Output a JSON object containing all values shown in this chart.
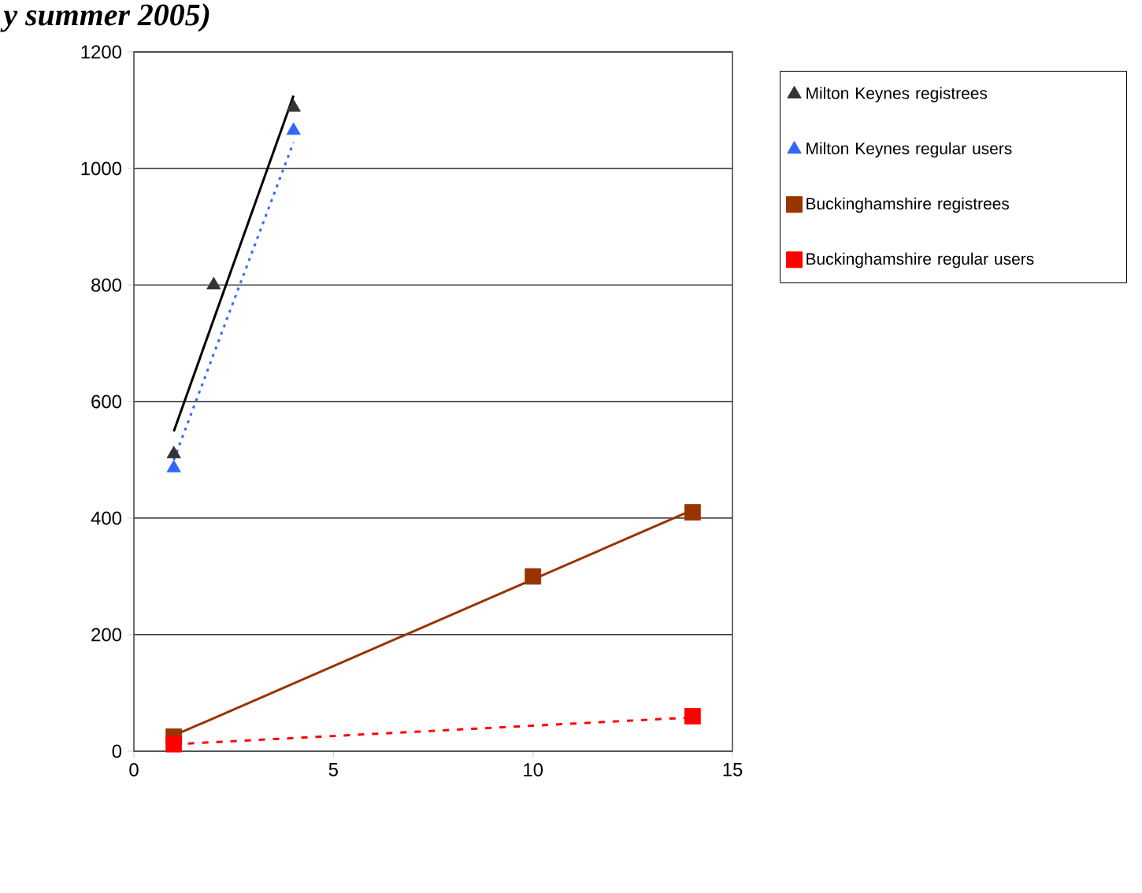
{
  "chart_data": {
    "type": "scatter",
    "title": "y summer 2005)",
    "xlim": [
      0,
      15
    ],
    "xticks": [
      0,
      5,
      10,
      15
    ],
    "ylim": [
      0,
      1200
    ],
    "yticks": [
      0,
      200,
      400,
      600,
      800,
      1000,
      1200
    ],
    "grid": "y",
    "legend": "right",
    "series": [
      {
        "name": "Milton Keynes registrees",
        "color": "#333333",
        "marker": "triangle",
        "x": [
          1,
          2,
          4
        ],
        "values": [
          510,
          800,
          1105
        ]
      },
      {
        "name": "Milton Keynes regular users",
        "color": "#3366ff",
        "marker": "triangle",
        "x": [
          1,
          4
        ],
        "values": [
          486,
          1065
        ]
      },
      {
        "name": "Buckinghamshire registrees",
        "color": "#993300",
        "marker": "square",
        "x": [
          1,
          10,
          14
        ],
        "values": [
          25,
          300,
          410
        ]
      },
      {
        "name": "Buckinghamshire regular users",
        "color": "#ff0000",
        "marker": "square",
        "x": [
          1,
          14
        ],
        "values": [
          12,
          60
        ]
      },
      {
        "type": "line",
        "color": "#000000",
        "marker": "none",
        "line_style": "solid",
        "x": [
          1,
          4
        ],
        "values": [
          549,
          1125
        ]
      },
      {
        "type": "line",
        "color": "#3366ff",
        "marker": "none",
        "line_style": "dotted",
        "x": [
          1,
          4
        ],
        "values": [
          500,
          1045
        ]
      },
      {
        "type": "line",
        "color": "#993300",
        "marker": "none",
        "line_style": "solid",
        "x": [
          1,
          14
        ],
        "values": [
          27,
          414
        ]
      },
      {
        "type": "line",
        "color": "#ff0000",
        "marker": "none",
        "line_style": "dashed",
        "x": [
          1,
          14
        ],
        "values": [
          12,
          58
        ]
      }
    ]
  }
}
